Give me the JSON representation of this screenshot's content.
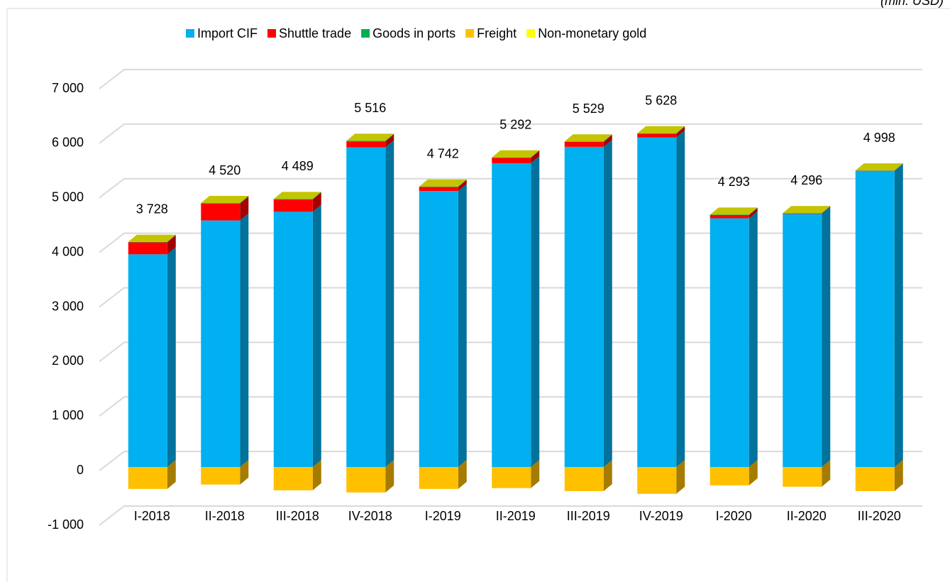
{
  "chart_data": {
    "type": "bar3d_stacked",
    "unit_label": "(mln. USD)",
    "categories": [
      "I-2018",
      "II-2018",
      "III-2018",
      "IV-2018",
      "I-2019",
      "II-2019",
      "III-2019",
      "IV-2019",
      "I-2020",
      "II-2020",
      "III-2020"
    ],
    "series": [
      {
        "name": "Import CIF",
        "color": "#00b0f0",
        "values": [
          3900,
          4520,
          4680,
          5860,
          5060,
          5570,
          5870,
          6040,
          4560,
          4640,
          5430
        ]
      },
      {
        "name": "Shuttle trade",
        "color": "#ff0000",
        "values": [
          220,
          310,
          225,
          110,
          75,
          100,
          90,
          70,
          60,
          10,
          3
        ]
      },
      {
        "name": "Goods in ports",
        "color": "#00b050",
        "values": [
          8,
          10,
          9,
          11,
          7,
          7,
          9,
          8,
          8,
          6,
          5
        ]
      },
      {
        "name": "Freight",
        "color": "#ffc000",
        "values": [
          -400,
          -320,
          -425,
          -465,
          -400,
          -385,
          -440,
          -490,
          -335,
          -360,
          -440
        ]
      },
      {
        "name": "Non-monetary gold",
        "color": "#ffff00",
        "values": [
          0,
          0,
          0,
          0,
          0,
          0,
          0,
          0,
          0,
          0,
          0
        ]
      }
    ],
    "totals": [
      3728,
      4520,
      4489,
      5516,
      4742,
      5292,
      5529,
      5628,
      4293,
      4296,
      4998
    ],
    "totals_labels": [
      "3 728",
      "4 520",
      "4 489",
      "5 516",
      "4 742",
      "5 292",
      "5 529",
      "5 628",
      "4 293",
      "4 296",
      "4 998"
    ],
    "ylim": [
      -1000,
      7000
    ],
    "yticks": [
      {
        "value": -1000,
        "label": "-1 000"
      },
      0,
      {
        "value": 1000,
        "label": "1 000"
      },
      {
        "value": 2000,
        "label": "2 000"
      },
      {
        "value": 3000,
        "label": "3 000"
      },
      {
        "value": 4000,
        "label": "4 000"
      },
      {
        "value": 5000,
        "label": "5 000"
      },
      {
        "value": 6000,
        "label": "6 000"
      },
      {
        "value": 7000,
        "label": "7 000"
      }
    ],
    "grid": true
  }
}
